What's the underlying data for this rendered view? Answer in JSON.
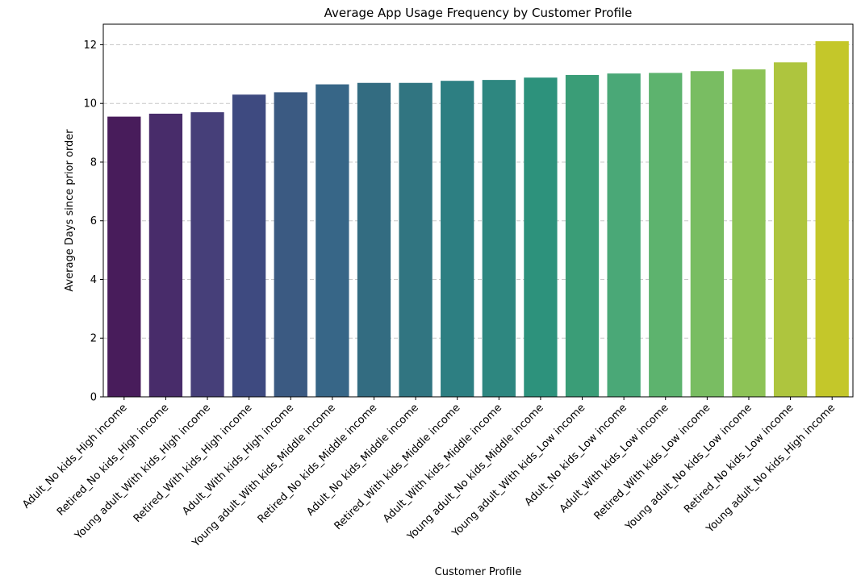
{
  "chart_data": {
    "type": "bar",
    "title": "Average App Usage Frequency by Customer Profile",
    "xlabel": "Customer Profile",
    "ylabel": "Average Days since prior order",
    "ylim": [
      0,
      12.7
    ],
    "yticks": [
      0,
      2,
      4,
      6,
      8,
      10,
      12
    ],
    "grid": "y-dashed",
    "legend": "none",
    "colormap": "viridis",
    "categories": [
      "Adult_No kids_High income",
      "Retired_No kids_High income",
      "Young adult_With kids_High income",
      "Retired_With kids_High income",
      "Adult_With kids_High income",
      "Young adult_With kids_Middle income",
      "Retired_No kids_Middle income",
      "Adult_No kids_Middle income",
      "Retired_With kids_Middle income",
      "Adult_With kids_Middle income",
      "Young adult_No kids_Middle income",
      "Young adult_With kids_Low income",
      "Adult_No kids_Low income",
      "Adult_With kids_Low income",
      "Retired_With kids_Low income",
      "Young adult_No kids_Low income",
      "Retired_No kids_Low income",
      "Young adult_No kids_High income"
    ],
    "values": [
      9.55,
      9.65,
      9.7,
      10.3,
      10.38,
      10.65,
      10.7,
      10.7,
      10.77,
      10.8,
      10.88,
      10.97,
      11.02,
      11.04,
      11.1,
      11.16,
      11.4,
      12.12
    ],
    "colors": [
      "#481c5b",
      "#482c6a",
      "#463f79",
      "#3e4a80",
      "#3b5a82",
      "#376687",
      "#336c81",
      "#317581",
      "#2d7f82",
      "#2e8780",
      "#2d927c",
      "#3a9d77",
      "#4aa877",
      "#5db36e",
      "#79bd62",
      "#8dc356",
      "#aec53e",
      "#c4c72a"
    ]
  }
}
